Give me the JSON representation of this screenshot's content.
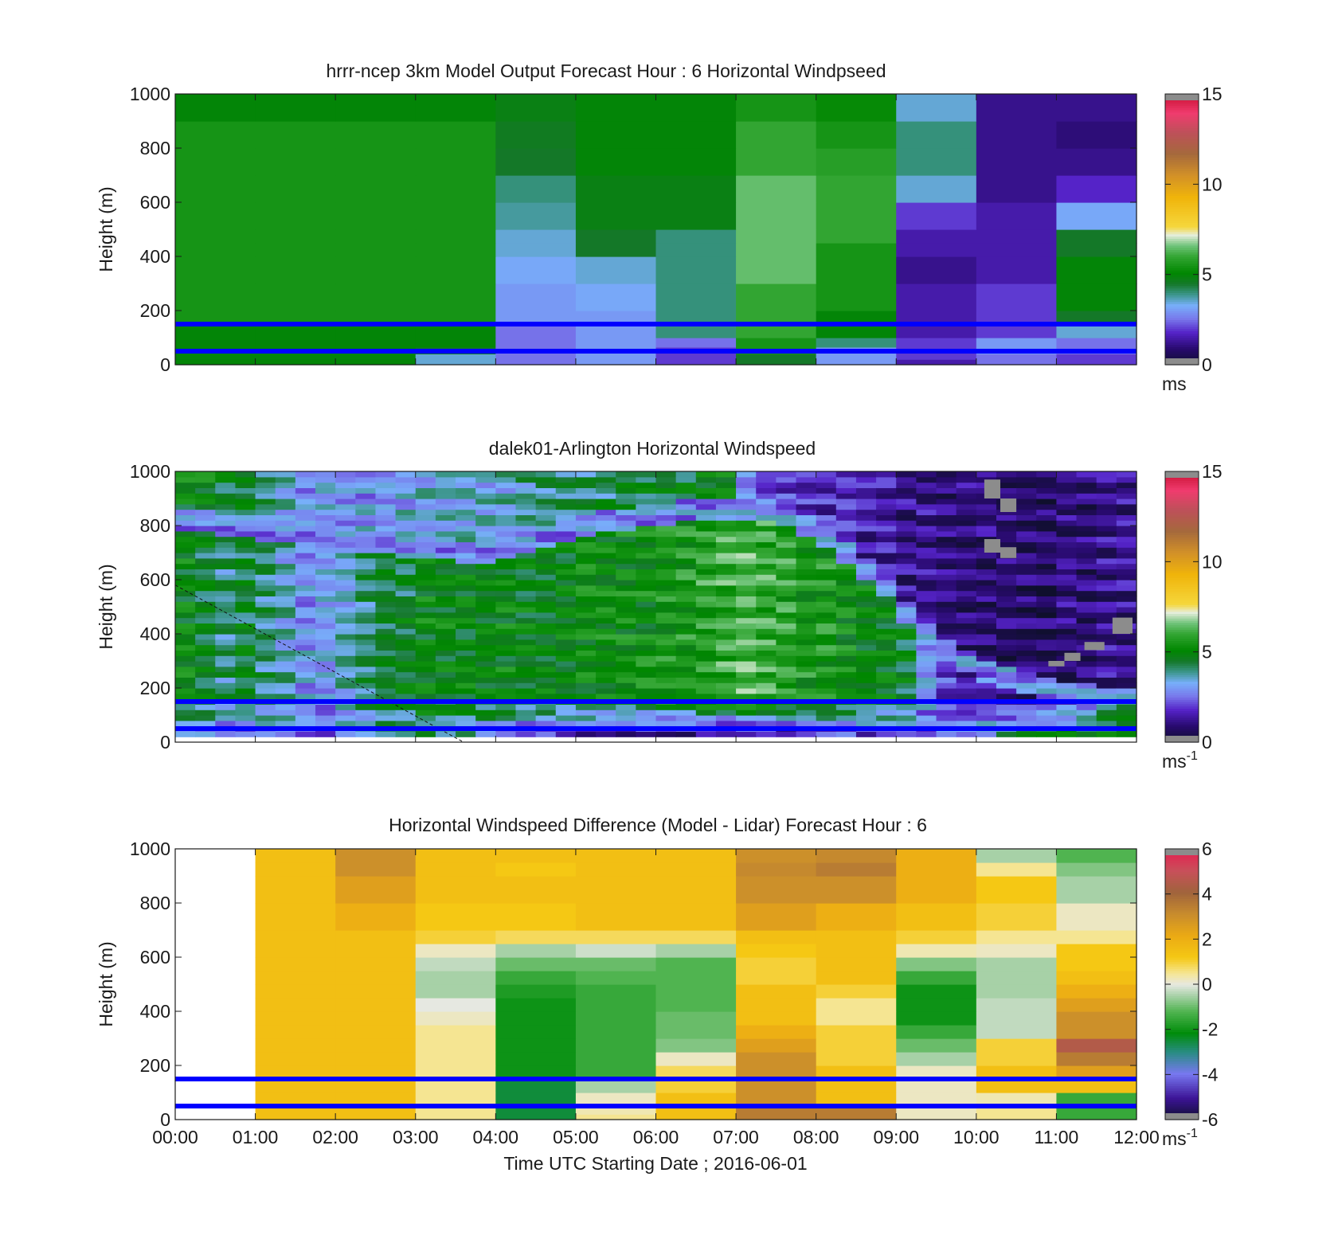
{
  "figure": {
    "xlabel": "Time UTC  Starting Date ; 2016-06-01",
    "x_ticks": [
      "00:00",
      "01:00",
      "02:00",
      "03:00",
      "04:00",
      "05:00",
      "06:00",
      "07:00",
      "08:00",
      "09:00",
      "10:00",
      "11:00",
      "12:00"
    ]
  },
  "chart_data": [
    {
      "type": "heatmap",
      "title": "hrrr-ncep 3km Model Output   Forecast Hour : 6 Horizontal Windpseed",
      "ylabel": "Height (m)",
      "xlim": [
        0,
        12
      ],
      "ylim": [
        0,
        1000
      ],
      "y_ticks": [
        "0",
        "200",
        "400",
        "600",
        "800",
        "1000"
      ],
      "colorbar": {
        "ticks": [
          "0",
          "5",
          "10",
          "15"
        ],
        "unit": "ms",
        "range": [
          0,
          15
        ]
      },
      "reference_lines_m": [
        50,
        150
      ],
      "reference_line_color": "#0000ff",
      "column_hours": [
        0,
        1,
        2,
        3,
        4,
        5,
        6,
        7,
        8,
        9,
        10,
        11
      ],
      "row_bounds_m": [
        0,
        20,
        40,
        65,
        100,
        150,
        200,
        300,
        400,
        450,
        500,
        600,
        700,
        800,
        900,
        1000
      ],
      "values_ms": [
        [
          5.0,
          5.0,
          5.0,
          3.5,
          2.5,
          3.0,
          2.0,
          4.5,
          3.0,
          1.5,
          2.5,
          2.0
        ],
        [
          5.0,
          5.0,
          5.0,
          3.5,
          2.5,
          3.0,
          2.0,
          4.5,
          3.0,
          2.0,
          2.5,
          2.0
        ],
        [
          5.0,
          5.0,
          5.0,
          4.5,
          2.5,
          3.0,
          2.0,
          5.5,
          3.0,
          2.0,
          3.0,
          2.5
        ],
        [
          5.0,
          5.0,
          5.0,
          5.0,
          2.5,
          3.0,
          2.5,
          5.5,
          4.0,
          2.0,
          3.0,
          2.5
        ],
        [
          5.0,
          5.0,
          5.0,
          5.0,
          2.5,
          3.0,
          4.0,
          6.0,
          5.0,
          1.5,
          2.0,
          3.5
        ],
        [
          5.5,
          5.5,
          5.5,
          5.5,
          3.0,
          3.0,
          4.0,
          6.0,
          5.0,
          1.5,
          2.0,
          4.5
        ],
        [
          5.5,
          5.5,
          5.5,
          5.5,
          3.0,
          3.2,
          4.0,
          6.0,
          5.5,
          1.5,
          2.0,
          5.0
        ],
        [
          5.5,
          5.5,
          5.5,
          5.5,
          3.2,
          3.5,
          4.0,
          6.5,
          5.5,
          1.2,
          1.5,
          5.0
        ],
        [
          5.5,
          5.5,
          5.5,
          5.5,
          3.5,
          4.5,
          4.0,
          6.5,
          5.5,
          1.5,
          1.5,
          4.5
        ],
        [
          5.5,
          5.5,
          5.5,
          5.5,
          3.5,
          4.5,
          4.0,
          6.5,
          6.0,
          1.5,
          1.5,
          4.5
        ],
        [
          5.5,
          5.5,
          5.5,
          5.5,
          3.8,
          4.8,
          4.8,
          6.5,
          6.0,
          2.0,
          1.5,
          3.2
        ],
        [
          5.5,
          5.5,
          5.5,
          5.5,
          4.0,
          4.8,
          4.8,
          6.5,
          6.0,
          3.5,
          1.2,
          1.8
        ],
        [
          5.5,
          5.5,
          5.5,
          5.5,
          4.5,
          5.0,
          5.0,
          6.0,
          5.8,
          4.0,
          1.2,
          1.2
        ],
        [
          5.5,
          5.5,
          5.5,
          5.5,
          4.6,
          5.0,
          5.0,
          6.0,
          5.5,
          4.0,
          1.2,
          1.0
        ],
        [
          5.0,
          5.0,
          5.0,
          5.0,
          4.8,
          5.0,
          5.0,
          5.5,
          5.2,
          3.5,
          1.2,
          1.2
        ]
      ]
    },
    {
      "type": "heatmap",
      "title": "dalek01-Arlington  Horizontal Windspeed",
      "ylabel": "Height (m)",
      "xlim": [
        0,
        12
      ],
      "ylim": [
        0,
        1000
      ],
      "y_ticks": [
        "0",
        "200",
        "400",
        "600",
        "800",
        "1000"
      ],
      "colorbar": {
        "ticks": [
          "0",
          "5",
          "10",
          "15"
        ],
        "unit": "ms",
        "unit_superscript": "-1",
        "range": [
          0,
          15
        ]
      },
      "reference_lines_m": [
        50,
        150
      ],
      "reference_line_color": "#0000ff",
      "profile_hours": [
        0.125,
        0.375,
        0.625,
        0.875,
        1.125,
        1.375,
        1.625,
        1.875,
        2.125,
        2.375,
        2.625,
        2.875,
        3.125,
        3.375,
        3.625,
        3.875,
        4.125,
        4.375,
        4.625,
        4.875,
        5.125,
        5.375,
        5.625,
        5.875,
        6.125,
        6.375,
        6.625,
        6.875,
        7.125,
        7.375,
        7.625,
        7.875,
        8.125,
        8.375,
        8.625,
        8.875,
        9.125,
        9.375,
        9.625,
        9.875,
        10.125,
        10.375,
        10.625,
        10.875,
        11.125,
        11.375,
        11.625,
        11.875
      ],
      "low_speed_jet_core_height_m": [
        820,
        820,
        800,
        790,
        780,
        770,
        760,
        750,
        740,
        730,
        730,
        720,
        720,
        710,
        700,
        700,
        720,
        740,
        760,
        780,
        800,
        810,
        820,
        830,
        840,
        850,
        860,
        860,
        860,
        850,
        830,
        800,
        760,
        700,
        640,
        580,
        480,
        400,
        340,
        300,
        260,
        240,
        220,
        200,
        180,
        170,
        160,
        150
      ],
      "below_core_speed_ms": [
        5.0,
        4.5,
        4.0,
        4.5,
        4.0,
        3.5,
        3.0,
        3.0,
        3.5,
        4.0,
        4.5,
        4.5,
        5.0,
        5.0,
        5.0,
        5.0,
        5.0,
        4.8,
        4.8,
        5.0,
        5.2,
        5.2,
        5.2,
        5.2,
        5.5,
        5.5,
        5.8,
        6.0,
        6.2,
        6.0,
        5.8,
        5.5,
        5.5,
        5.2,
        5.0,
        4.8,
        4.5,
        3.0,
        2.0,
        1.5,
        1.5,
        1.2,
        1.2,
        1.5,
        2.0,
        2.5,
        3.5,
        4.5
      ],
      "above_core_speed_ms": [
        5.0,
        5.0,
        4.5,
        4.5,
        4.0,
        3.5,
        3.0,
        3.0,
        3.0,
        3.0,
        3.0,
        3.2,
        3.5,
        3.5,
        3.5,
        3.5,
        3.5,
        3.8,
        4.0,
        4.0,
        4.2,
        4.2,
        4.5,
        4.5,
        4.5,
        4.5,
        4.8,
        4.8,
        2.5,
        2.0,
        2.0,
        1.8,
        1.8,
        1.8,
        1.5,
        1.5,
        1.2,
        1.2,
        1.0,
        1.0,
        1.0,
        0.8,
        0.8,
        0.8,
        1.0,
        1.0,
        1.2,
        1.2
      ],
      "near_surface_speed_ms": [
        3.0,
        3.0,
        2.5,
        2.5,
        3.0,
        3.0,
        2.5,
        2.5,
        3.0,
        3.5,
        4.0,
        4.0,
        4.0,
        3.5,
        3.5,
        3.0,
        2.5,
        2.0,
        1.8,
        1.5,
        1.5,
        1.2,
        1.2,
        1.2,
        1.0,
        1.0,
        1.0,
        1.0,
        1.0,
        1.2,
        1.2,
        1.5,
        1.8,
        2.0,
        2.0,
        2.2,
        2.5,
        2.5,
        2.8,
        3.0,
        3.5,
        4.0,
        4.5,
        4.5,
        4.5,
        4.5,
        5.0,
        5.0
      ],
      "missing_data_boxes": [
        {
          "hours": [
            10.1,
            10.3
          ],
          "height_m": [
            900,
            970
          ]
        },
        {
          "hours": [
            10.3,
            10.5
          ],
          "height_m": [
            850,
            900
          ]
        },
        {
          "hours": [
            10.1,
            10.3
          ],
          "height_m": [
            700,
            750
          ]
        },
        {
          "hours": [
            10.3,
            10.5
          ],
          "height_m": [
            680,
            720
          ]
        },
        {
          "hours": [
            10.9,
            11.1
          ],
          "height_m": [
            280,
            300
          ]
        },
        {
          "hours": [
            11.1,
            11.3
          ],
          "height_m": [
            300,
            330
          ]
        },
        {
          "hours": [
            11.35,
            11.6
          ],
          "height_m": [
            340,
            370
          ]
        },
        {
          "hours": [
            11.7,
            11.95
          ],
          "height_m": [
            400,
            460
          ]
        }
      ],
      "dashed_line": {
        "from": [
          0.0,
          580
        ],
        "to": [
          3.6,
          0
        ]
      }
    },
    {
      "type": "heatmap",
      "title": "Horizontal Windspeed Difference (Model - Lidar) Forecast Hour : 6",
      "ylabel": "Height (m)",
      "xlim": [
        0,
        12
      ],
      "ylim": [
        0,
        1000
      ],
      "y_ticks": [
        "0",
        "200",
        "400",
        "600",
        "800",
        "1000"
      ],
      "colorbar": {
        "ticks": [
          "-6",
          "-4",
          "-2",
          "0",
          "2",
          "4",
          "6"
        ],
        "unit": "ms",
        "unit_superscript": "-1",
        "range": [
          -6,
          6
        ]
      },
      "reference_lines_m": [
        50,
        150
      ],
      "reference_line_color": "#0000ff",
      "column_hours": [
        0,
        1,
        2,
        3,
        4,
        5,
        6,
        7,
        8,
        9,
        10,
        11
      ],
      "row_bounds_m": [
        0,
        20,
        50,
        100,
        150,
        200,
        250,
        300,
        350,
        400,
        450,
        500,
        550,
        600,
        650,
        700,
        800,
        900,
        950,
        1000
      ],
      "values_ms": [
        [
          null,
          1.5,
          1.5,
          0.5,
          -2.5,
          0.5,
          1.5,
          3.5,
          3.5,
          0.2,
          0.5,
          -1.5
        ],
        [
          null,
          1.5,
          1.5,
          0.5,
          -2.5,
          0.3,
          1.5,
          3.5,
          3.5,
          0.2,
          0.5,
          -1.5
        ],
        [
          null,
          1.5,
          1.5,
          0.5,
          -2.5,
          0.2,
          1.5,
          3.0,
          1.5,
          0.2,
          0.3,
          -1.5
        ],
        [
          null,
          1.5,
          1.5,
          0.5,
          -2.5,
          -0.5,
          1.0,
          3.0,
          1.5,
          0.2,
          1.5,
          1.5
        ],
        [
          null,
          1.5,
          1.5,
          0.5,
          -2.0,
          -1.5,
          0.8,
          3.0,
          1.5,
          0.2,
          1.5,
          2.5
        ],
        [
          null,
          1.5,
          1.5,
          0.5,
          -2.0,
          -1.5,
          0.2,
          3.0,
          1.0,
          -0.5,
          1.0,
          3.5
        ],
        [
          null,
          1.5,
          1.5,
          0.5,
          -2.0,
          -1.5,
          -0.8,
          2.5,
          1.0,
          -1.0,
          1.0,
          4.5
        ],
        [
          null,
          1.5,
          1.5,
          0.5,
          -2.0,
          -1.5,
          -1.0,
          2.0,
          1.0,
          -1.5,
          -0.3,
          3.0
        ],
        [
          null,
          1.5,
          1.5,
          0.2,
          -2.0,
          -1.5,
          -1.0,
          1.5,
          0.5,
          -2.0,
          -0.3,
          3.0
        ],
        [
          null,
          1.5,
          1.5,
          0.0,
          -2.0,
          -1.5,
          -1.2,
          1.5,
          0.5,
          -2.0,
          -0.3,
          2.5
        ],
        [
          null,
          1.5,
          1.5,
          -0.5,
          -1.8,
          -1.5,
          -1.2,
          1.5,
          1.0,
          -2.0,
          -0.5,
          2.0
        ],
        [
          null,
          1.5,
          1.5,
          -0.5,
          -1.5,
          -1.2,
          -1.2,
          1.0,
          1.5,
          -1.5,
          -0.5,
          1.5
        ],
        [
          null,
          1.5,
          1.5,
          -0.3,
          -1.0,
          -1.0,
          -1.2,
          1.0,
          1.5,
          -0.8,
          -0.5,
          1.2
        ],
        [
          null,
          1.5,
          1.5,
          0.2,
          -0.5,
          -0.2,
          -0.5,
          1.2,
          1.5,
          0.3,
          0.2,
          1.2
        ],
        [
          null,
          1.5,
          1.5,
          1.0,
          0.8,
          0.8,
          0.8,
          1.5,
          1.5,
          1.0,
          0.5,
          0.5
        ],
        [
          null,
          1.5,
          2.0,
          1.2,
          1.2,
          1.5,
          1.5,
          2.5,
          2.0,
          1.5,
          1.0,
          0.2
        ],
        [
          null,
          1.5,
          2.5,
          1.5,
          1.5,
          1.5,
          1.5,
          3.0,
          3.0,
          2.0,
          1.2,
          -0.5
        ],
        [
          null,
          1.5,
          3.0,
          1.5,
          1.2,
          1.5,
          1.5,
          3.2,
          3.5,
          2.0,
          0.5,
          -0.8
        ],
        [
          null,
          1.5,
          3.0,
          1.5,
          1.5,
          1.5,
          1.5,
          3.0,
          3.2,
          2.0,
          -0.5,
          -1.2
        ]
      ]
    }
  ]
}
